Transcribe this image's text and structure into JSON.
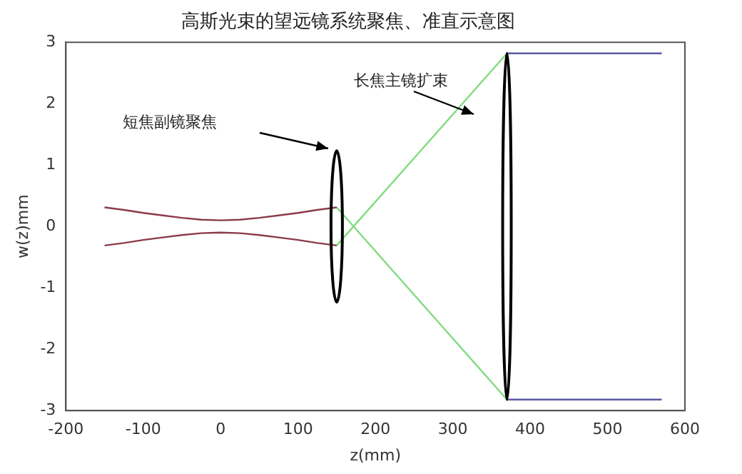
{
  "chart_data": {
    "type": "line",
    "title": "高斯光束的望远镜系统聚焦、准直示意图",
    "xlabel": "z(mm)",
    "ylabel": "w(z)mm",
    "xlim": [
      -200,
      600
    ],
    "xticks": [
      -200,
      -100,
      0,
      100,
      200,
      300,
      400,
      500,
      600
    ],
    "ylim": [
      -3,
      3
    ],
    "yticks": [
      -3,
      -2,
      -1,
      0,
      1,
      2,
      3
    ],
    "grid": false,
    "legend": false,
    "marker": "none",
    "line_style": "solid",
    "annotations": [
      "短焦副镜聚焦",
      "长焦主镜扩束"
    ],
    "series": [
      {
        "color": "#8b3a4a",
        "x": [
          -150,
          -125,
          -100,
          -75,
          -50,
          -25,
          0,
          25,
          50,
          75,
          100,
          125,
          150
        ],
        "values": [
          0.31,
          0.27,
          0.22,
          0.18,
          0.14,
          0.11,
          0.1,
          0.11,
          0.14,
          0.18,
          0.22,
          0.27,
          0.31
        ]
      },
      {
        "color": "#8b3a4a",
        "x": [
          -150,
          -125,
          -100,
          -75,
          -50,
          -25,
          0,
          25,
          50,
          75,
          100,
          125,
          150
        ],
        "values": [
          -0.31,
          -0.27,
          -0.22,
          -0.18,
          -0.14,
          -0.11,
          -0.1,
          -0.11,
          -0.14,
          -0.18,
          -0.22,
          -0.27,
          -0.31
        ]
      },
      {
        "color": "#7fdc7f",
        "x": [
          150,
          370
        ],
        "values": [
          0.31,
          -2.82
        ]
      },
      {
        "color": "#7fdc7f",
        "x": [
          150,
          370
        ],
        "values": [
          -0.31,
          2.82
        ]
      },
      {
        "color": "#5a5aa0",
        "x": [
          370,
          570
        ],
        "values": [
          2.82,
          2.82
        ]
      },
      {
        "color": "#5a5aa0",
        "x": [
          370,
          570
        ],
        "values": [
          -2.82,
          -2.82
        ]
      }
    ]
  }
}
